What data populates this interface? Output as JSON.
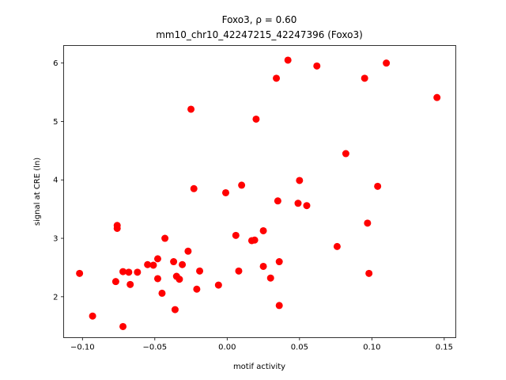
{
  "chart_data": {
    "type": "scatter",
    "title_line1": "Foxo3, ρ = 0.60",
    "title_line2": "mm10_chr10_42247215_42247396 (Foxo3)",
    "xlabel": "motif activity",
    "ylabel": "signal at CRE (ln)",
    "xlim": [
      -0.113,
      0.158
    ],
    "ylim": [
      1.3,
      6.3
    ],
    "xticks": [
      -0.1,
      -0.05,
      0.0,
      0.05,
      0.1,
      0.15
    ],
    "xtick_labels": [
      "−0.10",
      "−0.05",
      "0.00",
      "0.05",
      "0.10",
      "0.15"
    ],
    "yticks": [
      2,
      3,
      4,
      5,
      6
    ],
    "ytick_labels": [
      "2",
      "3",
      "4",
      "5",
      "6"
    ],
    "marker_color": "#ff0000",
    "grid": false,
    "points": [
      [
        -0.102,
        2.4
      ],
      [
        -0.093,
        1.67
      ],
      [
        -0.076,
        3.22
      ],
      [
        -0.076,
        3.17
      ],
      [
        -0.077,
        2.26
      ],
      [
        -0.072,
        2.43
      ],
      [
        -0.072,
        1.49
      ],
      [
        -0.068,
        2.42
      ],
      [
        -0.067,
        2.21
      ],
      [
        -0.062,
        2.42
      ],
      [
        -0.055,
        2.55
      ],
      [
        -0.051,
        2.54
      ],
      [
        -0.048,
        2.65
      ],
      [
        -0.048,
        2.31
      ],
      [
        -0.045,
        2.06
      ],
      [
        -0.043,
        3.0
      ],
      [
        -0.037,
        2.6
      ],
      [
        -0.036,
        1.78
      ],
      [
        -0.035,
        2.35
      ],
      [
        -0.033,
        2.3
      ],
      [
        -0.031,
        2.55
      ],
      [
        -0.027,
        2.78
      ],
      [
        -0.025,
        5.21
      ],
      [
        -0.023,
        3.85
      ],
      [
        -0.021,
        2.13
      ],
      [
        -0.019,
        2.44
      ],
      [
        -0.006,
        2.2
      ],
      [
        -0.001,
        3.78
      ],
      [
        0.006,
        3.05
      ],
      [
        0.008,
        2.44
      ],
      [
        0.01,
        3.91
      ],
      [
        0.017,
        2.96
      ],
      [
        0.019,
        2.97
      ],
      [
        0.02,
        5.04
      ],
      [
        0.025,
        3.13
      ],
      [
        0.025,
        2.52
      ],
      [
        0.03,
        2.32
      ],
      [
        0.034,
        5.74
      ],
      [
        0.035,
        3.64
      ],
      [
        0.036,
        2.6
      ],
      [
        0.036,
        1.85
      ],
      [
        0.042,
        6.05
      ],
      [
        0.049,
        3.6
      ],
      [
        0.05,
        3.99
      ],
      [
        0.055,
        3.56
      ],
      [
        0.062,
        5.95
      ],
      [
        0.076,
        2.86
      ],
      [
        0.082,
        4.45
      ],
      [
        0.095,
        5.74
      ],
      [
        0.097,
        3.26
      ],
      [
        0.098,
        2.4
      ],
      [
        0.104,
        3.89
      ],
      [
        0.11,
        6.0
      ],
      [
        0.145,
        5.41
      ]
    ]
  }
}
